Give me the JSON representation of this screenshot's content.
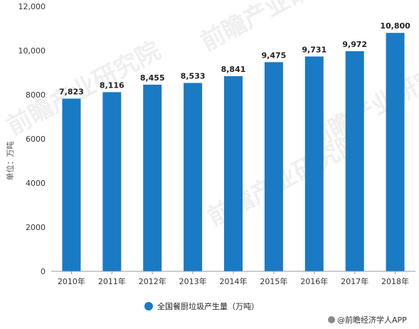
{
  "chart_data": {
    "type": "bar",
    "categories": [
      "2010年",
      "2011年",
      "2012年",
      "2013年",
      "2014年",
      "2015年",
      "2016年",
      "2017年",
      "2018年"
    ],
    "values": [
      7823,
      8116,
      8455,
      8533,
      8841,
      9475,
      9731,
      9972,
      10800
    ],
    "data_labels": [
      "7,823",
      "8,116",
      "8,455",
      "8,533",
      "8,841",
      "9,475",
      "9,731",
      "9,972",
      "10,800"
    ],
    "yticks": [
      0,
      2000,
      4000,
      6000,
      8000,
      10000,
      12000
    ],
    "ytick_labels": [
      "0",
      "2000",
      "4000",
      "6000",
      "8000",
      "10,000",
      "12,000"
    ],
    "ylim": [
      0,
      12000
    ],
    "ylabel": "单位：万吨",
    "legend": {
      "label": "全国餐厨垃圾产生量（万吨）",
      "position": "bottom"
    },
    "grid": false,
    "colors": {
      "bar": "#1a7ac4",
      "axis": "#999999"
    }
  },
  "watermark": {
    "text": "前瞻产业研究院"
  },
  "credit": {
    "text": "@前瞻经济学人APP"
  }
}
